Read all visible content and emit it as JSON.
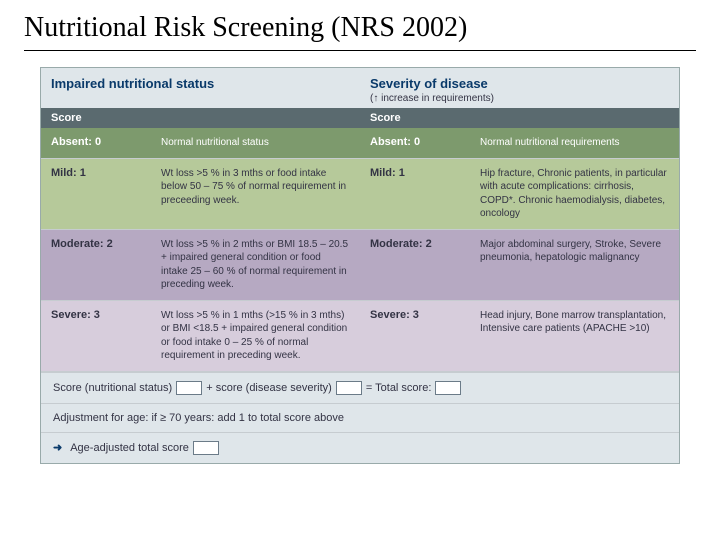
{
  "title": "Nutritional Risk Screening (NRS 2002)",
  "colors": {
    "header_bg": "#dfe6ea",
    "header_text": "#0a3a6a",
    "score_bg": "#5a6a6f",
    "absent_bg": "#7d9a6d",
    "mild_bg": "#b6c99a",
    "mod_bg": "#b6a9c2",
    "sev_bg": "#d7cddc",
    "panel_border": "#99aaaa"
  },
  "columns": {
    "left": {
      "header": "Impaired nutritional status",
      "sub": ""
    },
    "right": {
      "header": "Severity of disease",
      "sub": "(↑ increase in requirements)"
    }
  },
  "score_label": "Score",
  "rows": [
    {
      "css": "row-absent",
      "left": {
        "level": "Absent: 0",
        "desc": "Normal nutritional status"
      },
      "right": {
        "level": "Absent: 0",
        "desc": "Normal nutritional requirements"
      }
    },
    {
      "css": "row-mild",
      "left": {
        "level": "Mild: 1",
        "desc": "Wt loss >5 % in 3 mths or food intake below 50 – 75 % of normal requirement in preceeding week."
      },
      "right": {
        "level": "Mild: 1",
        "desc": "Hip fracture, Chronic patients, in particular with acute complications: cirrhosis, COPD*. Chronic haemodialysis, diabetes, oncology"
      }
    },
    {
      "css": "row-mod",
      "left": {
        "level": "Moderate: 2",
        "desc": "Wt loss >5 % in 2 mths or BMI 18.5 – 20.5 + impaired general condition or food intake 25 – 60 % of normal requirement in preceding week."
      },
      "right": {
        "level": "Moderate: 2",
        "desc": "Major abdominal surgery, Stroke, Severe pneumonia, hepatologic malignancy"
      }
    },
    {
      "css": "row-sev",
      "left": {
        "level": "Severe: 3",
        "desc": "Wt loss >5 % in 1 mths (>15 % in 3 mths) or BMI <18.5 + impaired general condition or food intake 0 – 25 % of normal requirement in preceding week."
      },
      "right": {
        "level": "Severe: 3",
        "desc": "Head injury, Bone marrow transplantation, Intensive care patients (APACHE >10)"
      }
    }
  ],
  "footer": {
    "line1_a": "Score (nutritional status)",
    "line1_b": "+ score (disease severity)",
    "line1_c": "= Total score:",
    "line2": "Adjustment for age: if ≥ 70 years: add 1 to total score above",
    "line3": "Age-adjusted total score"
  }
}
